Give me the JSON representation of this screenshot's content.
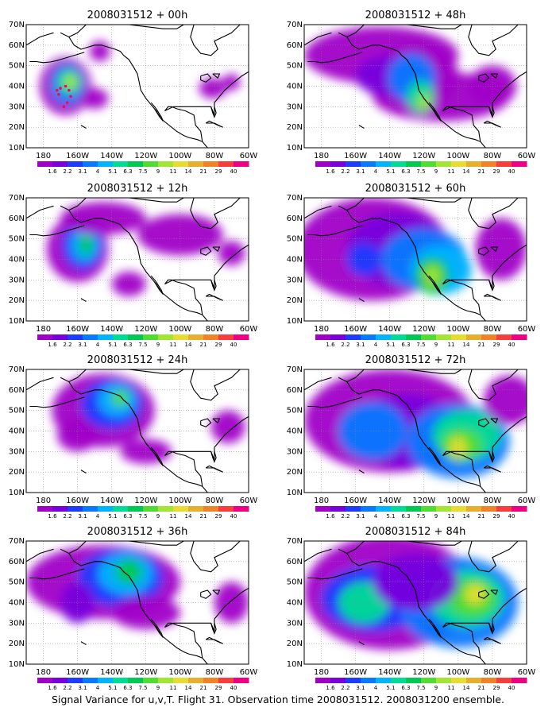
{
  "panels": [
    {
      "title": "2008031512 + 00h"
    },
    {
      "title": "2008031512 + 48h"
    },
    {
      "title": "2008031512 + 12h"
    },
    {
      "title": "2008031512 + 60h"
    },
    {
      "title": "2008031512 + 24h"
    },
    {
      "title": "2008031512 + 72h"
    },
    {
      "title": "2008031512 + 36h"
    },
    {
      "title": "2008031512 + 84h"
    }
  ],
  "lat_ticks": [
    "10N",
    "20N",
    "30N",
    "40N",
    "50N",
    "60N",
    "70N"
  ],
  "lon_ticks": [
    "180",
    "160W",
    "140W",
    "120W",
    "100W",
    "80W",
    "60W"
  ],
  "colorbar": {
    "labels": [
      "1.6",
      "2.2",
      "3.1",
      "4",
      "5.1",
      "6.3",
      "7.5",
      "9",
      "11",
      "14",
      "21",
      "29",
      "40"
    ],
    "colors": [
      "#a000c8",
      "#7800dc",
      "#1e3cff",
      "#0a78ff",
      "#00b4ff",
      "#00dc96",
      "#00c850",
      "#50dc32",
      "#a0e632",
      "#e6dc32",
      "#e6af2d",
      "#f08228",
      "#fa3c3c",
      "#f00082"
    ]
  },
  "caption": "Signal Variance for u,v,T. Flight 31. Observation time 2008031512. 2008031200 ensemble."
}
